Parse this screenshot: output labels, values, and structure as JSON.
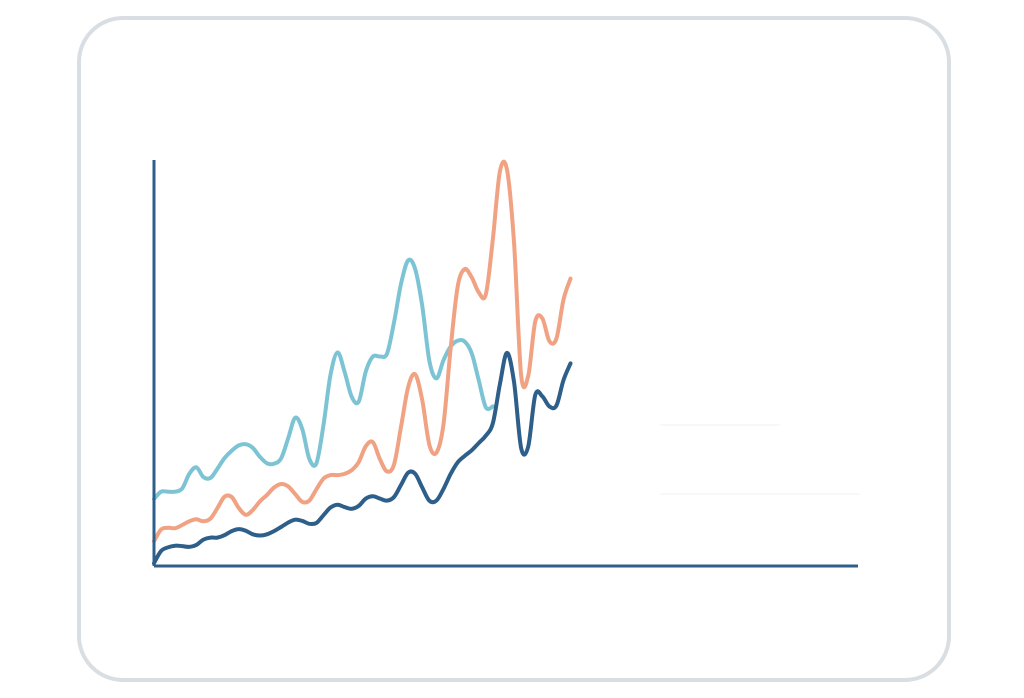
{
  "chart_data": {
    "type": "line",
    "title": "",
    "xlabel": "",
    "ylabel": "",
    "x": [
      0,
      1,
      2,
      3,
      4,
      5,
      6,
      7,
      8,
      9,
      10,
      11,
      12,
      13,
      14,
      15,
      16,
      17,
      18,
      19,
      20,
      21,
      22,
      23,
      24,
      25,
      26,
      27,
      28,
      29,
      30,
      31,
      32,
      33,
      34,
      35,
      36,
      37,
      38,
      39,
      40,
      41,
      42,
      43,
      44,
      45,
      46,
      47,
      48,
      49,
      50,
      51,
      52,
      53,
      54,
      55,
      56,
      57,
      58,
      59,
      60,
      61,
      62,
      63,
      64,
      65,
      66,
      67,
      68,
      69,
      70,
      71,
      72,
      73,
      74,
      75,
      76,
      77,
      78,
      79,
      80,
      81,
      82,
      83,
      84,
      85,
      86,
      87,
      88,
      89,
      90,
      91,
      92,
      93,
      94,
      95,
      96,
      97,
      98,
      99,
      100
    ],
    "xlim": [
      0,
      100
    ],
    "ylim": [
      0,
      100
    ],
    "grid": false,
    "axis_color": "#2d5f8a",
    "series": [
      {
        "color": "#7cc4d4",
        "values": [
          16.5,
          18.3,
          18.3,
          18.3,
          19.1,
          22.7,
          24.3,
          21.9,
          21.7,
          24.0,
          26.6,
          28.4,
          29.7,
          30.0,
          29.1,
          26.9,
          25.3,
          25.2,
          26.5,
          31.4,
          36.5,
          33.7,
          26.4,
          25.3,
          34.6,
          47.1,
          52.6,
          47.8,
          41.7,
          40.5,
          47.9,
          51.6,
          51.6,
          52.3,
          60.0,
          69.6,
          75.3,
          73.1,
          64.0,
          50.6,
          46.2,
          50.7,
          54.0,
          55.5,
          55.3,
          52.4,
          45.7,
          39.1,
          39.3,
          null,
          null,
          null,
          null,
          null,
          null,
          null,
          null,
          null,
          null,
          null,
          null,
          null,
          null,
          null,
          null,
          null,
          null,
          null,
          null,
          null,
          null,
          null,
          null,
          null,
          null,
          null,
          null,
          null,
          null,
          null,
          null,
          null,
          null,
          null,
          null,
          null,
          null,
          null,
          null,
          null,
          null,
          null,
          null,
          null,
          null,
          null,
          null,
          null,
          null,
          null,
          null
        ]
      },
      {
        "color": "#f0a283",
        "values": [
          6.1,
          9.0,
          9.4,
          9.3,
          10.1,
          11.0,
          11.5,
          11.0,
          11.7,
          14.3,
          17.1,
          17.0,
          14.3,
          12.6,
          13.8,
          15.9,
          17.5,
          19.3,
          20.2,
          19.6,
          17.7,
          15.8,
          16.1,
          18.9,
          21.5,
          22.4,
          22.4,
          22.7,
          23.6,
          25.6,
          29.5,
          30.5,
          26.3,
          23.3,
          25.0,
          34.4,
          44.1,
          47.2,
          40.8,
          29.9,
          27.9,
          34.9,
          53.3,
          68.7,
          73.1,
          71.1,
          67.4,
          66.9,
          80.6,
          97.2,
          97.6,
          79.4,
          47.1,
          46.8,
          60.2,
          61.0,
          55.4,
          56.0,
          65.6,
          70.8,
          null,
          null,
          null,
          null,
          null,
          null,
          null,
          null,
          null,
          null,
          null,
          null,
          null,
          null,
          null,
          null,
          null,
          null,
          null,
          null,
          null,
          null,
          null,
          null,
          null,
          null,
          null,
          null,
          null,
          null,
          null,
          null,
          null,
          null,
          null,
          null,
          null,
          null,
          null,
          null,
          null
        ]
      },
      {
        "color": "#2d5f8a",
        "values": [
          0.7,
          3.7,
          4.6,
          5.0,
          4.9,
          4.7,
          5.2,
          6.5,
          7.0,
          7.0,
          7.6,
          8.6,
          9.1,
          8.7,
          7.8,
          7.5,
          7.8,
          8.6,
          9.6,
          10.7,
          11.4,
          11.1,
          10.4,
          10.6,
          12.5,
          14.4,
          15.1,
          14.5,
          14.1,
          14.8,
          16.6,
          17.2,
          16.6,
          16.1,
          17.0,
          20.0,
          23.0,
          22.7,
          19.3,
          16.1,
          16.1,
          19.0,
          22.6,
          25.5,
          27.1,
          28.5,
          30.3,
          32.1,
          35.2,
          44.8,
          52.5,
          45.2,
          29.1,
          29.4,
          42.1,
          41.8,
          39.3,
          39.5,
          45.8,
          49.9,
          null,
          null,
          null,
          null,
          null,
          null,
          null,
          null,
          null,
          null,
          null,
          null,
          null,
          null,
          null,
          null,
          null,
          null,
          null,
          null,
          null,
          null,
          null,
          null,
          null,
          null,
          null,
          null,
          null,
          null,
          null,
          null,
          null,
          null,
          null,
          null,
          null,
          null,
          null,
          null,
          null
        ]
      }
    ]
  }
}
